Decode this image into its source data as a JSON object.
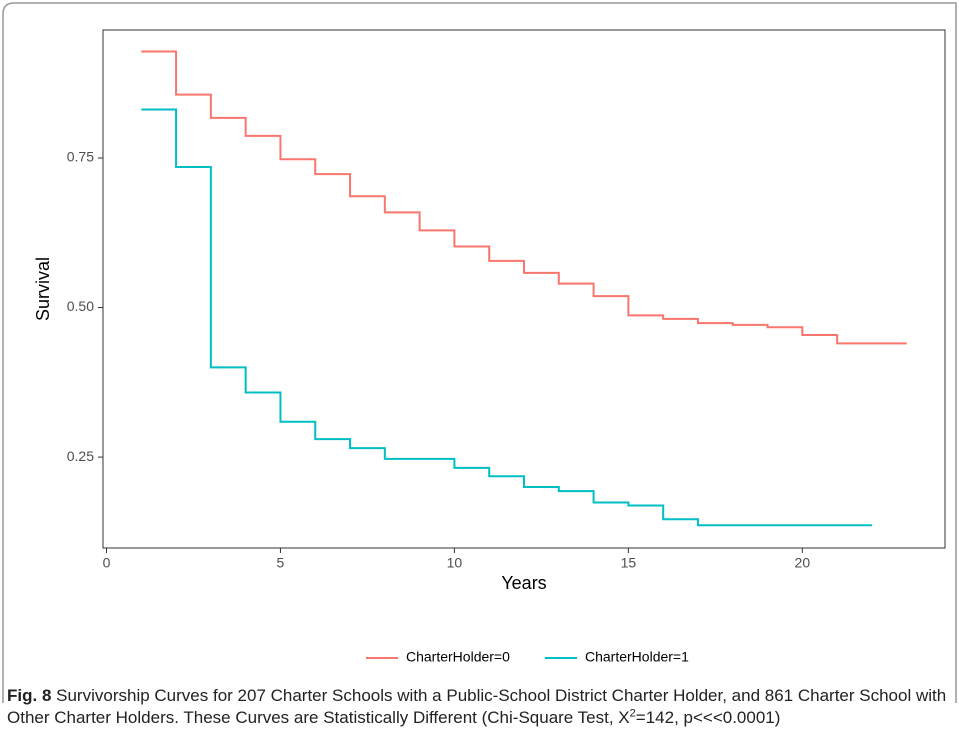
{
  "chart_data": {
    "type": "step",
    "x_label": "Years",
    "y_label": "Survival",
    "xlim": [
      -0.1,
      24.1
    ],
    "xticks": [
      0,
      5,
      10,
      15,
      20
    ],
    "ylim": [
      0.098,
      0.964
    ],
    "yticks": [
      0.25,
      {
        "value": 0.5,
        "label": "0.50"
      },
      0.75
    ],
    "grid": false,
    "legend": "bottom",
    "series": [
      {
        "name": "CharterHolder=0",
        "color": "#f8766d",
        "x": [
          1,
          2,
          3,
          4,
          5,
          6,
          7,
          8,
          9,
          10,
          11,
          12,
          13,
          14,
          15,
          16,
          17,
          18,
          19,
          20,
          21,
          22,
          23
        ],
        "values": [
          0.928,
          0.856,
          0.817,
          0.787,
          0.748,
          0.723,
          0.686,
          0.659,
          0.629,
          0.602,
          0.578,
          0.558,
          0.54,
          0.519,
          0.487,
          0.481,
          0.474,
          0.471,
          0.467,
          0.454,
          0.44,
          0.44,
          0.44
        ]
      },
      {
        "name": "CharterHolder=1",
        "color": "#00bfc4",
        "x": [
          1,
          2,
          3,
          4,
          5,
          6,
          7,
          8,
          9,
          10,
          11,
          12,
          13,
          14,
          15,
          16,
          17,
          18,
          19,
          20,
          21,
          22
        ],
        "values": [
          0.831,
          0.735,
          0.4,
          0.358,
          0.309,
          0.28,
          0.265,
          0.247,
          0.247,
          0.232,
          0.218,
          0.2,
          0.193,
          0.174,
          0.169,
          0.146,
          0.136,
          0.136,
          0.136,
          0.136,
          0.136,
          0.136
        ]
      }
    ]
  },
  "caption": {
    "label": "Fig. 8",
    "text_before_sup": "Survivorship Curves for 207 Charter Schools with a Public-School District Charter Holder, and 861 Charter School with Other Charter Holders. These Curves are Statistically Different (Chi-Square Test, X",
    "sup": "2",
    "text_after_sup": "=142, p<<<0.0001)"
  }
}
